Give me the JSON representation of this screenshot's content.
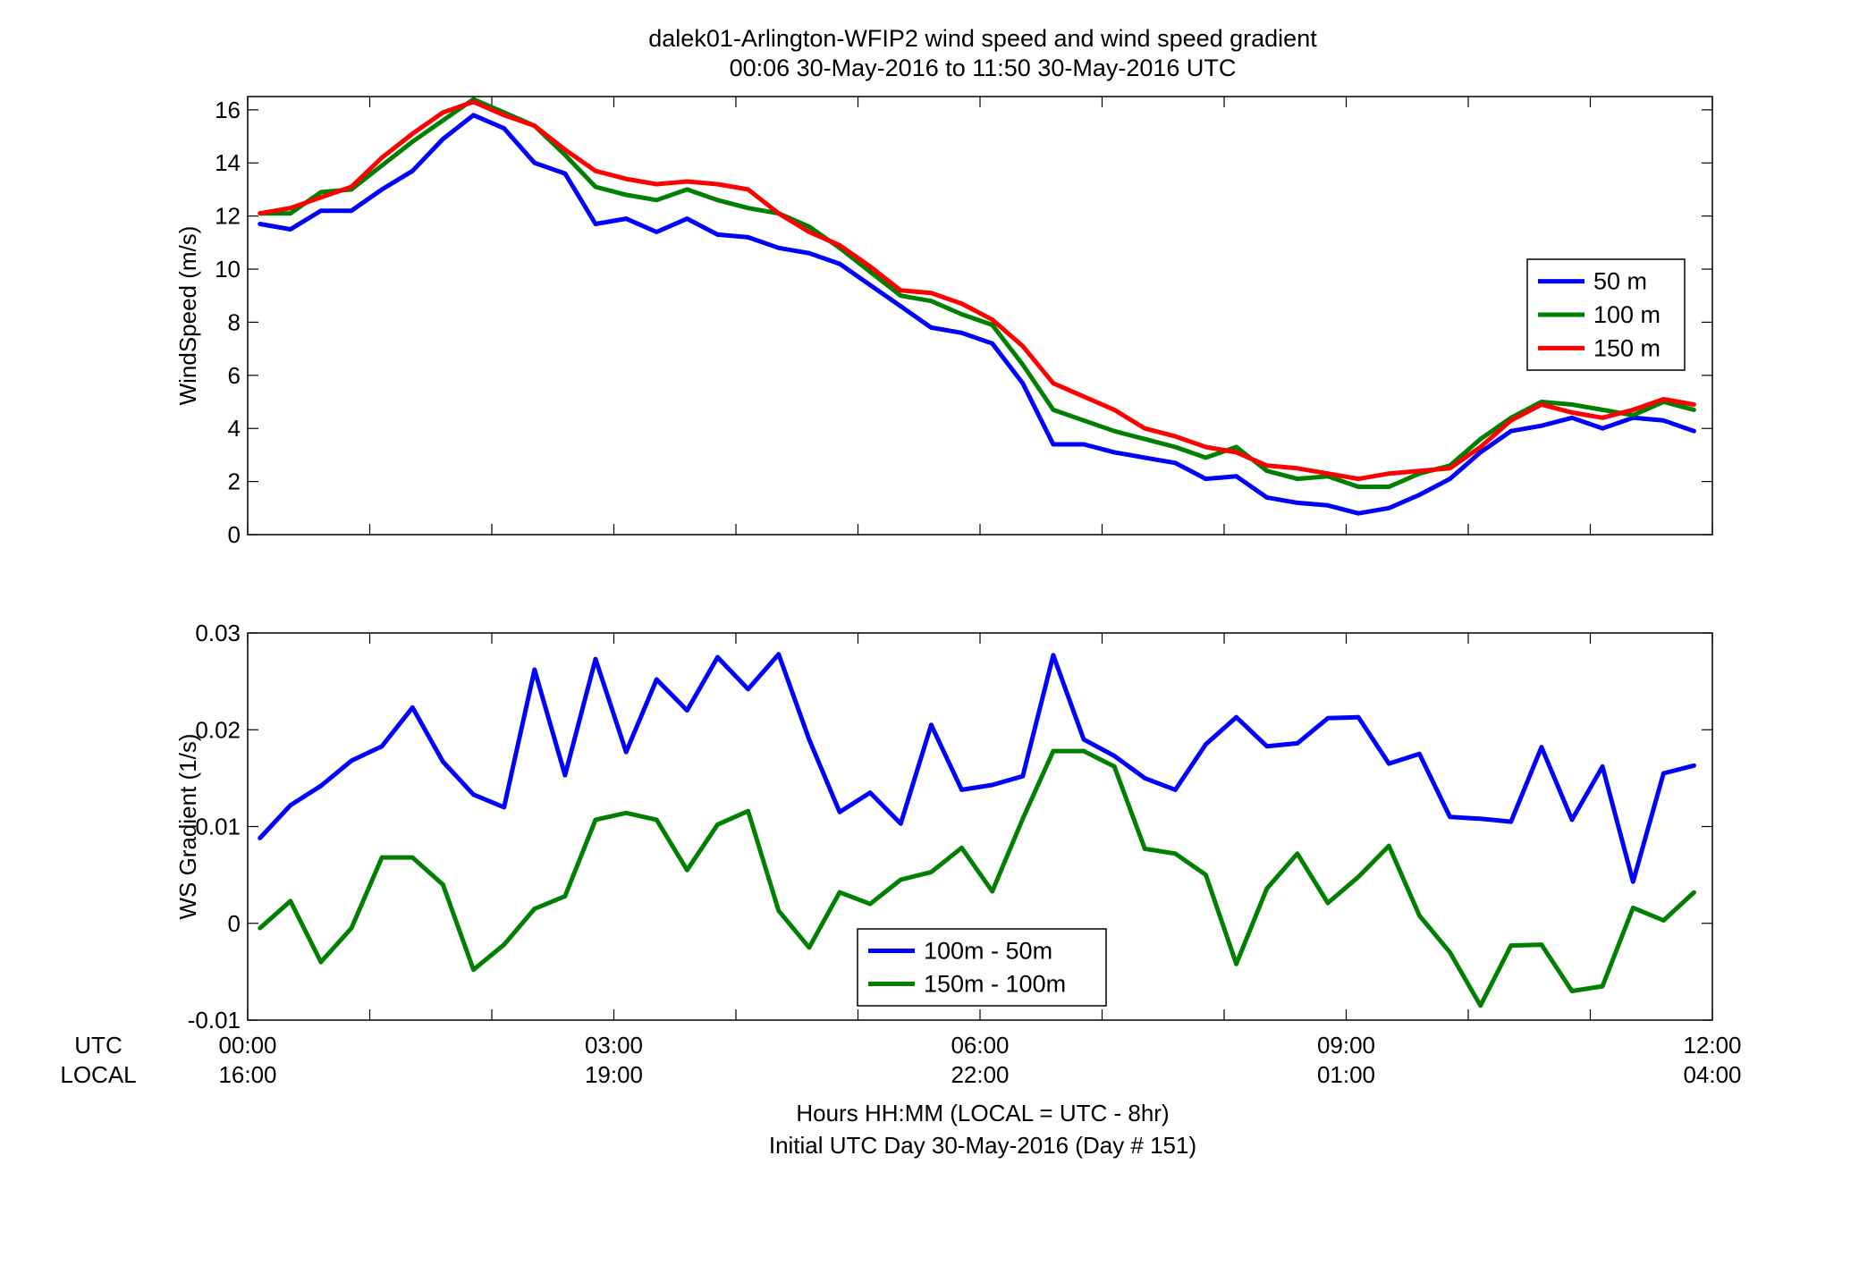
{
  "title_line1": "dalek01-Arlington-WFIP2  wind speed and wind speed gradient",
  "title_line2": "00:06 30-May-2016 to 11:50 30-May-2016  UTC",
  "xlabel_line1": "Hours HH:MM  (LOCAL = UTC - 8hr)",
  "xlabel_line2": "Initial UTC Day 30-May-2016 (Day # 151)",
  "row_label_utc": "UTC",
  "row_label_local": "LOCAL",
  "x_ticks_utc": [
    "00:00",
    "03:00",
    "06:00",
    "09:00",
    "12:00"
  ],
  "x_ticks_local": [
    "16:00",
    "19:00",
    "22:00",
    "01:00",
    "04:00"
  ],
  "chart_data": [
    {
      "type": "line",
      "ylabel": "WindSpeed (m/s)",
      "xlim": [
        0,
        12
      ],
      "ylim": [
        0,
        16.5
      ],
      "y_ticks": [
        "0",
        "2",
        "4",
        "6",
        "8",
        "10",
        "12",
        "14",
        "16"
      ],
      "legend_position": "right",
      "grid": false,
      "x_hours": [
        0.1,
        0.35,
        0.6,
        0.85,
        1.1,
        1.35,
        1.6,
        1.85,
        2.1,
        2.35,
        2.6,
        2.85,
        3.1,
        3.35,
        3.6,
        3.85,
        4.1,
        4.35,
        4.6,
        4.85,
        5.1,
        5.35,
        5.6,
        5.85,
        6.1,
        6.35,
        6.6,
        6.85,
        7.1,
        7.35,
        7.6,
        7.85,
        8.1,
        8.35,
        8.6,
        8.85,
        9.1,
        9.35,
        9.6,
        9.85,
        10.1,
        10.35,
        10.6,
        10.85,
        11.1,
        11.35,
        11.6,
        11.85
      ],
      "series": [
        {
          "name": "50 m",
          "color": "#0000ff",
          "values": [
            11.7,
            11.5,
            12.2,
            12.2,
            13.0,
            13.7,
            14.9,
            15.8,
            15.3,
            14.0,
            13.6,
            11.7,
            11.9,
            11.4,
            11.9,
            11.3,
            11.2,
            10.8,
            10.6,
            10.2,
            9.4,
            8.6,
            7.8,
            7.6,
            7.2,
            5.7,
            3.4,
            3.4,
            3.1,
            2.9,
            2.7,
            2.1,
            2.2,
            1.4,
            1.2,
            1.1,
            0.8,
            1.0,
            1.5,
            2.1,
            3.1,
            3.9,
            4.1,
            4.4,
            4.0,
            4.4,
            4.3,
            3.9
          ]
        },
        {
          "name": "100 m",
          "color": "#008000",
          "values": [
            12.1,
            12.1,
            12.9,
            13.0,
            13.9,
            14.8,
            15.6,
            16.4,
            15.9,
            15.4,
            14.3,
            13.1,
            12.8,
            12.6,
            13.0,
            12.6,
            12.3,
            12.1,
            11.6,
            10.8,
            9.9,
            9.0,
            8.8,
            8.3,
            7.9,
            6.4,
            4.7,
            4.3,
            3.9,
            3.6,
            3.3,
            2.9,
            3.3,
            2.4,
            2.1,
            2.2,
            1.8,
            1.8,
            2.3,
            2.6,
            3.6,
            4.4,
            5.0,
            4.9,
            4.7,
            4.5,
            5.0,
            4.7
          ]
        },
        {
          "name": "150 m",
          "color": "#ff0000",
          "values": [
            12.1,
            12.3,
            12.7,
            13.1,
            14.2,
            15.1,
            15.9,
            16.3,
            15.8,
            15.4,
            14.5,
            13.7,
            13.4,
            13.2,
            13.3,
            13.2,
            13.0,
            12.1,
            11.4,
            10.9,
            10.1,
            9.2,
            9.1,
            8.7,
            8.1,
            7.1,
            5.7,
            5.2,
            4.7,
            4.0,
            3.7,
            3.3,
            3.1,
            2.6,
            2.5,
            2.3,
            2.1,
            2.3,
            2.4,
            2.5,
            3.3,
            4.3,
            4.9,
            4.6,
            4.4,
            4.7,
            5.1,
            4.9
          ]
        }
      ]
    },
    {
      "type": "line",
      "ylabel": "WS Gradient (1/s)",
      "xlim": [
        0,
        12
      ],
      "ylim": [
        -0.01,
        0.03
      ],
      "y_ticks": [
        "-0.01",
        "0",
        "0.01",
        "0.02",
        "0.03"
      ],
      "legend_position": "bottom-center",
      "grid": false,
      "x_hours": [
        0.1,
        0.35,
        0.6,
        0.85,
        1.1,
        1.35,
        1.6,
        1.85,
        2.1,
        2.35,
        2.6,
        2.85,
        3.1,
        3.35,
        3.6,
        3.85,
        4.1,
        4.35,
        4.6,
        4.85,
        5.1,
        5.35,
        5.6,
        5.85,
        6.1,
        6.35,
        6.6,
        6.85,
        7.1,
        7.35,
        7.6,
        7.85,
        8.1,
        8.35,
        8.6,
        8.85,
        9.1,
        9.35,
        9.6,
        9.85,
        10.1,
        10.35,
        10.6,
        10.85,
        11.1,
        11.35,
        11.6,
        11.85
      ],
      "series": [
        {
          "name": "100m - 50m",
          "color": "#0000ff",
          "values": [
            0.0088,
            0.0122,
            0.0142,
            0.0168,
            0.0183,
            0.0223,
            0.0167,
            0.0133,
            0.012,
            0.0262,
            0.0153,
            0.0273,
            0.0177,
            0.0252,
            0.022,
            0.0275,
            0.0242,
            0.0278,
            0.019,
            0.0115,
            0.0135,
            0.0103,
            0.0205,
            0.0138,
            0.0143,
            0.0152,
            0.0277,
            0.019,
            0.0173,
            0.015,
            0.0138,
            0.0185,
            0.0213,
            0.0183,
            0.0186,
            0.0212,
            0.0213,
            0.0165,
            0.0175,
            0.011,
            0.0108,
            0.0105,
            0.0182,
            0.0107,
            0.0162,
            0.0043,
            0.0155,
            0.0163
          ]
        },
        {
          "name": "150m - 100m",
          "color": "#008000",
          "values": [
            -0.0005,
            0.0023,
            -0.004,
            -0.0005,
            0.0068,
            0.0068,
            0.004,
            -0.0048,
            -0.0022,
            0.0015,
            0.0028,
            0.0107,
            0.0114,
            0.0107,
            0.0055,
            0.0102,
            0.0116,
            0.0013,
            -0.0025,
            0.0032,
            0.002,
            0.0045,
            0.0053,
            0.0078,
            0.0033,
            0.0108,
            0.0178,
            0.0178,
            0.0162,
            0.0077,
            0.0072,
            0.005,
            -0.0042,
            0.0036,
            0.0072,
            0.0021,
            0.0048,
            0.008,
            0.0008,
            -0.003,
            -0.0085,
            -0.0023,
            -0.0022,
            -0.007,
            -0.0065,
            0.0016,
            0.0003,
            0.0032
          ]
        }
      ]
    }
  ]
}
